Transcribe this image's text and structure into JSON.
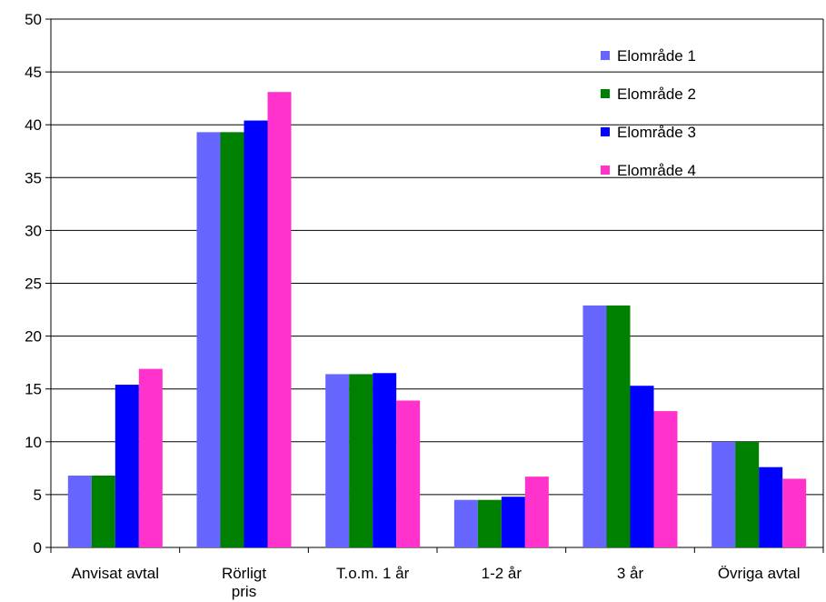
{
  "chart_data": {
    "type": "bar",
    "categories": [
      [
        "Anvisat avtal"
      ],
      [
        "Rörligt",
        "pris"
      ],
      [
        "T.o.m. 1 år"
      ],
      [
        "1-2 år"
      ],
      [
        "3 år"
      ],
      [
        "Övriga avtal"
      ]
    ],
    "series": [
      {
        "name": "Elområde 1",
        "color": "#6666ff",
        "values": [
          6.8,
          39.3,
          16.4,
          4.5,
          22.9,
          10.0
        ]
      },
      {
        "name": "Elområde 2",
        "color": "#008000",
        "values": [
          6.8,
          39.3,
          16.4,
          4.5,
          22.9,
          10.0
        ]
      },
      {
        "name": "Elområde 3",
        "color": "#0000ff",
        "values": [
          15.4,
          40.4,
          16.5,
          4.8,
          15.3,
          7.6
        ]
      },
      {
        "name": "Elområde 4",
        "color": "#ff33cc",
        "values": [
          16.9,
          43.1,
          13.9,
          6.7,
          12.9,
          6.5
        ]
      }
    ],
    "yticks": [
      "0",
      "5",
      "10",
      "15",
      "20",
      "25",
      "30",
      "35",
      "40",
      "45",
      "50"
    ],
    "ylim": [
      0,
      50
    ],
    "grid": true,
    "legend_position": "top-right"
  }
}
